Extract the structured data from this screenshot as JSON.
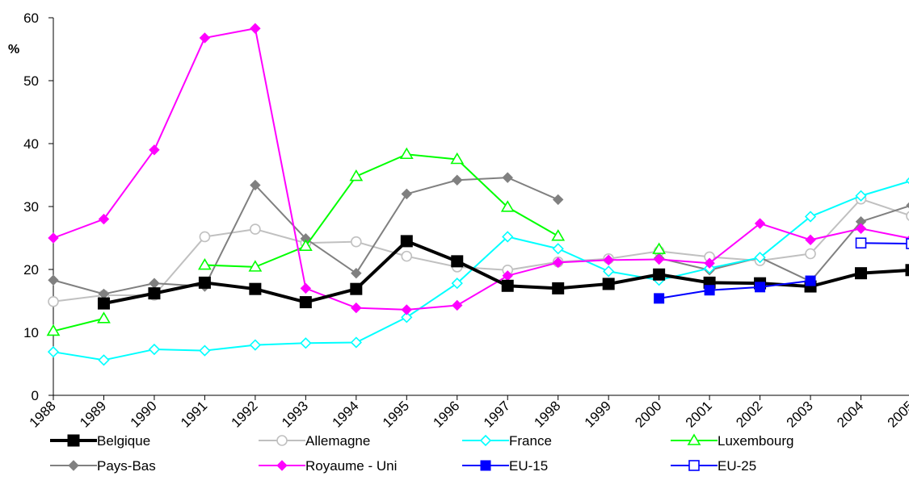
{
  "chart_data": {
    "type": "line",
    "title": "",
    "xlabel": "",
    "ylabel": "%",
    "ylim": [
      0,
      60
    ],
    "yticks": [
      0,
      10,
      20,
      30,
      40,
      50,
      60
    ],
    "grid": false,
    "legend_position": "bottom",
    "x": [
      "1988",
      "1989",
      "1990",
      "1991",
      "1992",
      "1993",
      "1994",
      "1995",
      "1996",
      "1997",
      "1998",
      "1999",
      "2000",
      "2001",
      "2002",
      "2003",
      "2004",
      "2005"
    ],
    "series": [
      {
        "name": "Belgique",
        "color": "#000000",
        "marker": "square-filled",
        "values": [
          null,
          14.6,
          16.2,
          17.9,
          16.9,
          14.8,
          16.9,
          24.5,
          21.3,
          17.4,
          17.0,
          17.7,
          19.2,
          17.9,
          17.8,
          17.3,
          19.4,
          19.9
        ]
      },
      {
        "name": "Allemagne",
        "color": "#c0c0c0",
        "marker": "circle-open",
        "values": [
          14.9,
          15.9,
          15.9,
          25.2,
          26.4,
          24.2,
          24.4,
          22.1,
          20.4,
          19.9,
          21.2,
          21.7,
          22.9,
          22.0,
          21.4,
          22.5,
          31.2,
          28.5
        ]
      },
      {
        "name": "France",
        "color": "#00ffff",
        "marker": "diamond-open",
        "values": [
          6.9,
          5.6,
          7.3,
          7.1,
          8.0,
          8.3,
          8.4,
          12.4,
          17.8,
          25.2,
          23.3,
          19.7,
          18.3,
          20.2,
          21.9,
          28.4,
          31.7,
          34.1
        ]
      },
      {
        "name": "Luxembourg",
        "color": "#00ff00",
        "marker": "triangle-open",
        "values": [
          10.2,
          12.2,
          null,
          20.7,
          20.4,
          23.7,
          34.8,
          38.3,
          37.5,
          29.9,
          25.3,
          null,
          23.2,
          null,
          null,
          null,
          null,
          null
        ]
      },
      {
        "name": "Pays-Bas",
        "color": "#808080",
        "marker": "diamond-filled",
        "values": [
          18.3,
          16.1,
          17.8,
          17.3,
          33.4,
          24.9,
          19.4,
          32.0,
          34.2,
          34.6,
          31.1,
          null,
          21.8,
          19.9,
          21.9,
          18.1,
          27.6,
          30.2
        ]
      },
      {
        "name": "Royaume - Uni",
        "color": "#ff00ff",
        "marker": "diamond-filled",
        "values": [
          25.0,
          28.0,
          39.0,
          56.8,
          58.3,
          17.0,
          13.9,
          13.6,
          14.3,
          19.0,
          21.1,
          21.5,
          21.6,
          21.0,
          27.3,
          24.7,
          26.5,
          24.9
        ]
      },
      {
        "name": "EU-15",
        "color": "#0000ff",
        "marker": "square-filled",
        "values": [
          null,
          null,
          null,
          null,
          null,
          null,
          null,
          null,
          null,
          null,
          null,
          null,
          15.4,
          16.7,
          17.2,
          18.2,
          null,
          null
        ]
      },
      {
        "name": "EU-25",
        "color": "#0000ff",
        "marker": "square-open",
        "values": [
          null,
          null,
          null,
          null,
          null,
          null,
          null,
          null,
          null,
          null,
          null,
          null,
          null,
          null,
          null,
          null,
          24.2,
          24.1
        ]
      }
    ]
  }
}
